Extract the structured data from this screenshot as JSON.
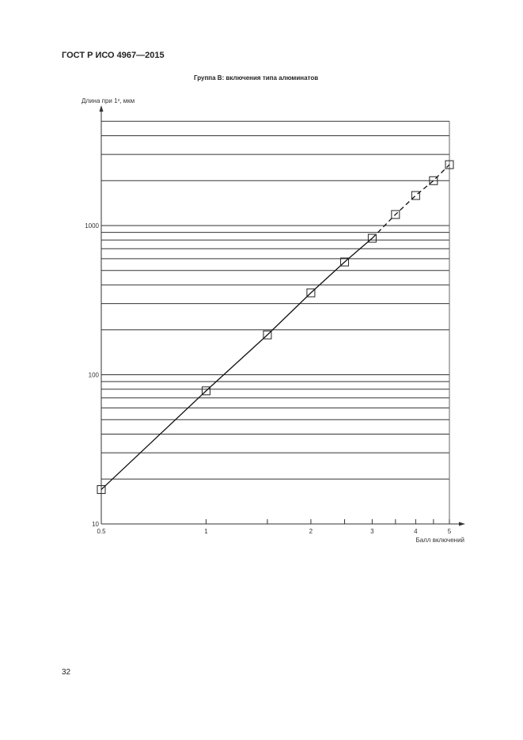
{
  "header": {
    "doc_id": "ГОСТ Р ИСО 4967—2015"
  },
  "page_number": "32",
  "chart_data": {
    "type": "line",
    "title": "Группа В: включения типа алюминатов",
    "xlabel": "Балл включений",
    "ylabel": "Длина при 1ˣ, мкм",
    "x_scale": "log",
    "y_scale": "log",
    "xlim": [
      0.5,
      5
    ],
    "ylim": [
      10,
      5000
    ],
    "x_tick_labels": [
      "0.5",
      "1",
      "2",
      "3",
      "4",
      "5"
    ],
    "x_ticks": [
      0.5,
      1,
      1.5,
      2,
      2.5,
      3,
      3.5,
      4,
      4.5,
      5
    ],
    "y_tick_labels": [
      "10",
      "100",
      "1000"
    ],
    "y_gridlines": [
      20,
      30,
      40,
      50,
      60,
      70,
      80,
      90,
      100,
      200,
      300,
      400,
      500,
      600,
      700,
      800,
      900,
      1000,
      2000,
      3000,
      4000,
      5000
    ],
    "grid": "horizontal",
    "marker": "open-square",
    "line_style": {
      "solid_until_x": 3,
      "dashed_after_x": 3
    },
    "x": [
      0.5,
      1,
      1.5,
      2,
      2.5,
      3,
      3.5,
      4,
      4.5,
      5
    ],
    "y": [
      17,
      78,
      185,
      354,
      570,
      822,
      1186,
      1590,
      2000,
      2560
    ]
  }
}
